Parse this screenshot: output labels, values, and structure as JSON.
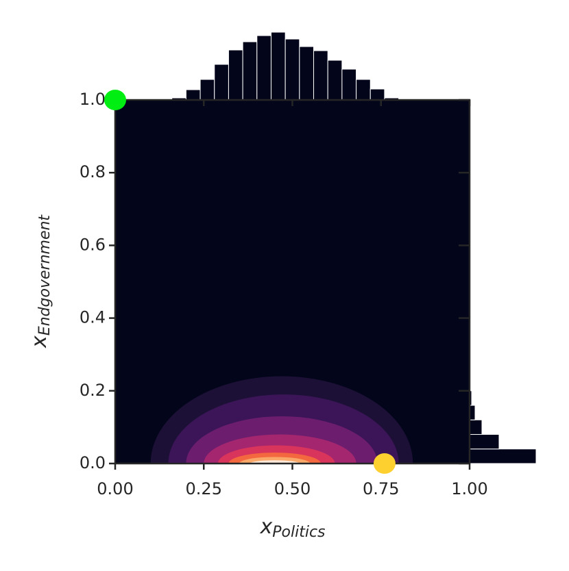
{
  "chart_data": {
    "type": "joint",
    "xlabel": "x",
    "xlabel_subscript": "Politics",
    "ylabel": "x",
    "ylabel_subscript": "Endgovernment",
    "xlim": [
      0,
      1
    ],
    "ylim": [
      0,
      1
    ],
    "xticks": [
      {
        "value": 0,
        "label": "0.00"
      },
      {
        "value": 0.25,
        "label": "0.25"
      },
      {
        "value": 0.5,
        "label": "0.50"
      },
      {
        "value": 0.75,
        "label": "0.75"
      },
      {
        "value": 1,
        "label": "1.00"
      }
    ],
    "yticks": [
      {
        "value": 0,
        "label": "0.0"
      },
      {
        "value": 0.2,
        "label": "0.2"
      },
      {
        "value": 0.4,
        "label": "0.4"
      },
      {
        "value": 0.6,
        "label": "0.6"
      },
      {
        "value": 0.8,
        "label": "0.8"
      },
      {
        "value": 1,
        "label": "1.0"
      }
    ],
    "background": "#03051a",
    "kde": [
      {
        "x": [
          0.1,
          0.84
        ],
        "ytop": 0.24,
        "color": "#1c1036"
      },
      {
        "x": [
          0.15,
          0.8
        ],
        "ytop": 0.19,
        "color": "#3b1557"
      },
      {
        "x": [
          0.2,
          0.74
        ],
        "ytop": 0.13,
        "color": "#6c1d6e"
      },
      {
        "x": [
          0.25,
          0.68
        ],
        "ytop": 0.08,
        "color": "#a3266f"
      },
      {
        "x": [
          0.29,
          0.62
        ],
        "ytop": 0.05,
        "color": "#d9345b"
      },
      {
        "x": [
          0.32,
          0.58
        ],
        "ytop": 0.03,
        "color": "#f4683f"
      },
      {
        "x": [
          0.35,
          0.55
        ],
        "ytop": 0.018,
        "color": "#f9a86a"
      },
      {
        "x": [
          0.38,
          0.52
        ],
        "ytop": 0.009,
        "color": "#fbe8d8"
      }
    ],
    "marginal_x": {
      "type": "histogram",
      "color": "#03051a",
      "bins": [
        0.16,
        0.2,
        0.24,
        0.28,
        0.32,
        0.36,
        0.4,
        0.44,
        0.48,
        0.52,
        0.56,
        0.6,
        0.64,
        0.68,
        0.72,
        0.76,
        0.8
      ],
      "values": [
        3,
        15,
        30,
        52,
        73,
        85,
        94,
        99,
        89,
        78,
        72,
        58,
        45,
        30,
        16,
        3
      ]
    },
    "marginal_y": {
      "type": "histogram",
      "color": "#03051a",
      "bins": [
        0,
        0.04,
        0.08,
        0.12,
        0.16,
        0.2
      ],
      "values": [
        97,
        43,
        18,
        8,
        3
      ]
    },
    "points": [
      {
        "x": 0.0,
        "y": 1.0,
        "color": "#00ee11"
      },
      {
        "x": 0.76,
        "y": 0.0,
        "color": "#fdd02f"
      }
    ]
  }
}
